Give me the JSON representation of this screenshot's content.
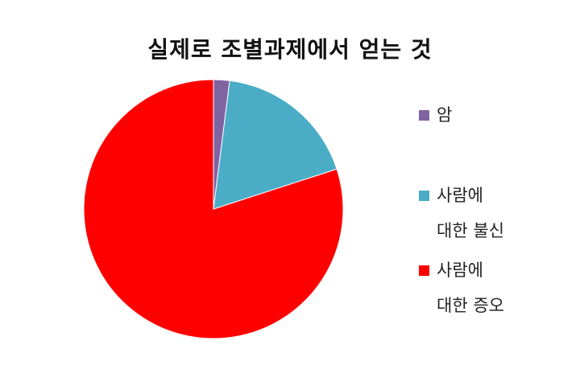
{
  "chart_data": {
    "type": "pie",
    "title": "실제로 조별과제에서 얻는 것",
    "categories": [
      "암",
      "사람에 대한 불신",
      "사람에 대한 증오"
    ],
    "values": [
      2,
      18,
      80
    ],
    "colors": [
      "#8064a2",
      "#4bacc6",
      "#ff0000"
    ],
    "start_angle_deg": 0,
    "direction": "clockwise",
    "legend_position": "right"
  }
}
